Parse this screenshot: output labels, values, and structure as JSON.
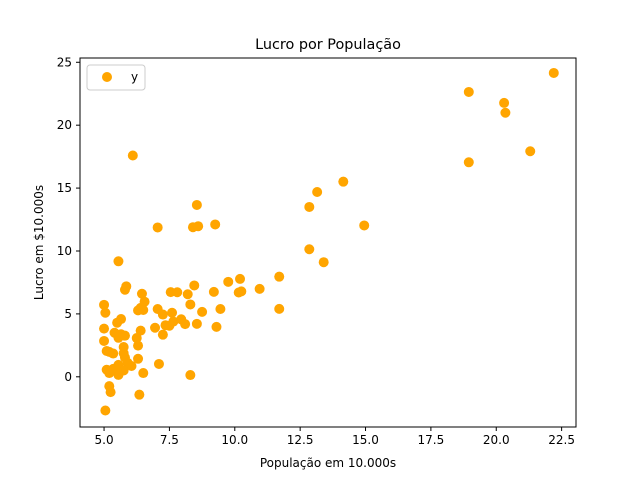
{
  "chart_data": {
    "type": "scatter",
    "title": "Lucro por População",
    "xlabel": "População em 10.000s",
    "ylabel": "Lucro em $10.000s",
    "xlim": [
      4.08,
      23.05
    ],
    "ylim": [
      -3.99,
      25.34
    ],
    "xticks": [
      5.0,
      7.5,
      10.0,
      12.5,
      15.0,
      17.5,
      20.0,
      22.5
    ],
    "xtick_labels": [
      "5.0",
      "7.5",
      "10.0",
      "12.5",
      "15.0",
      "17.5",
      "20.0",
      "22.5"
    ],
    "yticks": [
      0,
      5,
      10,
      15,
      20,
      25
    ],
    "ytick_labels": [
      "0",
      "5",
      "10",
      "15",
      "20",
      "25"
    ],
    "grid": false,
    "legend": {
      "position": "top-left",
      "entries": [
        "y"
      ]
    },
    "series": [
      {
        "name": "y",
        "color": "#ffa500",
        "points": [
          [
            22.2,
            24.15
          ],
          [
            18.95,
            22.64
          ],
          [
            20.3,
            21.77
          ],
          [
            20.35,
            20.99
          ],
          [
            21.3,
            17.93
          ],
          [
            18.95,
            17.05
          ],
          [
            6.1,
            17.59
          ],
          [
            14.15,
            15.51
          ],
          [
            13.15,
            14.69
          ],
          [
            12.85,
            13.5
          ],
          [
            8.55,
            13.66
          ],
          [
            7.05,
            11.87
          ],
          [
            8.4,
            11.89
          ],
          [
            8.6,
            11.97
          ],
          [
            9.25,
            12.11
          ],
          [
            14.95,
            12.03
          ],
          [
            12.85,
            10.14
          ],
          [
            13.4,
            9.11
          ],
          [
            5.55,
            9.18
          ],
          [
            11.7,
            7.96
          ],
          [
            10.2,
            7.78
          ],
          [
            8.45,
            7.26
          ],
          [
            9.75,
            7.55
          ],
          [
            10.95,
            6.99
          ],
          [
            10.15,
            6.7
          ],
          [
            10.25,
            6.79
          ],
          [
            9.2,
            6.75
          ],
          [
            5.8,
            6.92
          ],
          [
            5.85,
            7.19
          ],
          [
            7.55,
            6.73
          ],
          [
            7.8,
            6.72
          ],
          [
            8.2,
            6.56
          ],
          [
            6.45,
            6.6
          ],
          [
            6.55,
            5.97
          ],
          [
            8.3,
            5.75
          ],
          [
            7.05,
            5.39
          ],
          [
            6.4,
            5.48
          ],
          [
            6.3,
            5.28
          ],
          [
            6.5,
            5.31
          ],
          [
            5.0,
            5.72
          ],
          [
            5.05,
            5.09
          ],
          [
            9.45,
            5.39
          ],
          [
            11.7,
            5.4
          ],
          [
            8.75,
            5.16
          ],
          [
            7.6,
            5.09
          ],
          [
            7.25,
            4.95
          ],
          [
            7.65,
            4.39
          ],
          [
            7.95,
            4.57
          ],
          [
            8.1,
            4.19
          ],
          [
            8.55,
            4.21
          ],
          [
            7.5,
            4.06
          ],
          [
            7.35,
            4.1
          ],
          [
            6.95,
            3.9
          ],
          [
            9.3,
            3.97
          ],
          [
            5.65,
            4.59
          ],
          [
            5.5,
            4.3
          ],
          [
            5.4,
            3.5
          ],
          [
            5.0,
            3.83
          ],
          [
            6.4,
            3.67
          ],
          [
            7.25,
            3.35
          ],
          [
            5.65,
            3.38
          ],
          [
            5.8,
            3.27
          ],
          [
            5.55,
            3.1
          ],
          [
            6.25,
            3.08
          ],
          [
            5.0,
            2.85
          ],
          [
            6.3,
            2.48
          ],
          [
            5.75,
            2.37
          ],
          [
            5.1,
            2.05
          ],
          [
            5.2,
            1.98
          ],
          [
            5.35,
            1.85
          ],
          [
            5.75,
            1.87
          ],
          [
            5.8,
            1.53
          ],
          [
            6.3,
            1.43
          ],
          [
            5.9,
            1.11
          ],
          [
            5.55,
            0.95
          ],
          [
            6.05,
            0.86
          ],
          [
            7.1,
            1.02
          ],
          [
            5.35,
            0.63
          ],
          [
            5.6,
            0.53
          ],
          [
            5.75,
            0.5
          ],
          [
            5.1,
            0.56
          ],
          [
            5.25,
            0.42
          ],
          [
            5.5,
            0.39
          ],
          [
            5.2,
            0.3
          ],
          [
            6.5,
            0.3
          ],
          [
            5.55,
            0.15
          ],
          [
            8.3,
            0.14
          ],
          [
            5.2,
            -0.74
          ],
          [
            5.25,
            -1.22
          ],
          [
            6.35,
            -1.42
          ],
          [
            5.05,
            -2.68
          ]
        ]
      }
    ]
  }
}
